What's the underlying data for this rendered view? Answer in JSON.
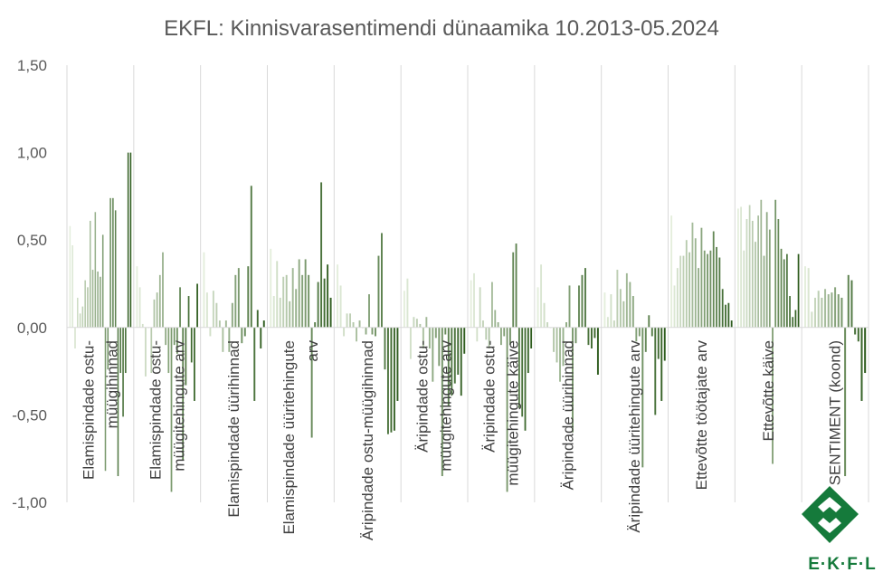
{
  "chart_data": {
    "type": "bar",
    "title": "EKFL: Kinnisvarasentimendi dünaamika 10.2013-05.2024",
    "ylim": [
      -1.0,
      1.5
    ],
    "yticks": [
      -1.0,
      -0.5,
      0.0,
      0.5,
      1.0,
      1.5
    ],
    "ytick_labels": [
      "-1,00",
      "-0,50",
      "0,00",
      "0,50",
      "1,00",
      "1,50"
    ],
    "grid": "vertical category separators",
    "legend": "none",
    "categories": [
      "Elamispindade ostu-müügihinnad",
      "Elamispindade ostu-müügitehingute arv",
      "Elamispindade üürihinnad",
      "Elamispindade üüritehingute arv",
      "Äripindade ostu-müügihinnad",
      "Äripindade ostu-müügitehingute arv",
      "Äripindade ostu-müügitehingute käive",
      "Äripindade üürihinnad",
      "Äripindade üüritehingute arv",
      "Ettevõtte töötajate arv",
      "Ettevõtte käive",
      "SENTIMENT (koond)"
    ],
    "category_label_lines": [
      [
        "Elamispindade ostu-",
        "müügihinnad"
      ],
      [
        "Elamispindade ostu-",
        "müügitehingute arv"
      ],
      [
        "Elamispindade üürihinnad"
      ],
      [
        "Elamispindade üüritehingute",
        "arv"
      ],
      [
        "Äripindade ostu-müügihinnad"
      ],
      [
        "Äripindade ostu-",
        "müügitehingute arv"
      ],
      [
        "Äripindade ostu-",
        "müügitehingute käive"
      ],
      [
        "Äripindade üürihinnad"
      ],
      [
        "Äripindade üüritehingute arv"
      ],
      [
        "Ettevõtte töötajate arv"
      ],
      [
        "Ettevõtte käive"
      ],
      [
        "SENTIMENT (koond)"
      ]
    ],
    "series_values": [
      [
        0.58,
        0.47,
        -0.12,
        0.17,
        0.08,
        0.12,
        0.27,
        0.23,
        0.61,
        0.33,
        0.66,
        0.32,
        0.29,
        0.53,
        -0.82,
        -0.24,
        0.74,
        0.74,
        0.67,
        -0.85,
        -0.26,
        -0.51,
        -0.26,
        1.0,
        1.0
      ],
      [
        0.35,
        0.23,
        0.02,
        -0.28,
        0.0,
        -0.26,
        0.16,
        0.2,
        0.3,
        0.43,
        -0.1,
        -0.26,
        -0.94,
        -0.1,
        -0.15,
        0.23,
        -0.76,
        -0.33,
        0.18,
        -0.2,
        -0.42,
        0.25
      ],
      [
        0.43,
        0.2,
        -0.05,
        0.21,
        0.14,
        0.04,
        -0.14,
        0.04,
        -0.14,
        0.14,
        0.3,
        0.34,
        -0.09,
        -0.05,
        0.35,
        0.81,
        -0.42,
        0.1,
        -0.12,
        0.04
      ],
      [
        0.45,
        0.18,
        0.38,
        0.17,
        0.29,
        0.3,
        0.15,
        0.34,
        0.22,
        0.39,
        0.3,
        0.39,
        0.3,
        -0.63,
        0.03,
        0.26,
        0.83,
        0.28,
        0.36,
        0.17
      ],
      [
        0.36,
        0.24,
        -0.05,
        0.08,
        0.08,
        0.03,
        -0.08,
        0.04,
        0.0,
        -0.04,
        0.19,
        -0.04,
        -0.05,
        0.41,
        0.54,
        -0.24,
        -0.61,
        -0.6,
        -0.59,
        -0.42
      ],
      [
        0.21,
        0.28,
        -0.18,
        0.06,
        0.05,
        0.02,
        -0.12,
        0.06,
        -0.12,
        -0.31,
        -0.06,
        -0.22,
        -0.85,
        -0.04,
        -0.45,
        -0.39,
        -0.32,
        -0.27,
        -0.39,
        -0.15
      ],
      [
        0.27,
        0.31,
        -0.08,
        0.23,
        0.04,
        -0.07,
        -0.12,
        0.26,
        0.1,
        0.03,
        -0.1,
        -0.05,
        -0.94,
        -0.1,
        0.43,
        0.48,
        -0.46,
        -0.51,
        -0.59,
        -0.26,
        -0.12
      ],
      [
        0.23,
        0.36,
        0.14,
        0.03,
        0.0,
        -0.14,
        -0.2,
        -0.31,
        -0.22,
        0.03,
        0.24,
        -0.6,
        -0.09,
        0.24,
        0.3,
        0.34,
        -0.1,
        -0.12,
        -0.06,
        -0.27
      ],
      [
        0.2,
        0.06,
        0.19,
        0.04,
        0.33,
        0.22,
        0.15,
        0.31,
        0.26,
        0.18,
        -0.08,
        -0.05,
        -0.8,
        -0.14,
        0.07,
        -0.05,
        -0.5,
        -0.18,
        -0.42,
        -0.19
      ],
      [
        0.64,
        0.24,
        0.34,
        0.41,
        0.41,
        0.5,
        0.43,
        0.6,
        0.51,
        0.34,
        0.57,
        0.44,
        0.42,
        0.44,
        0.55,
        0.46,
        0.4,
        0.22,
        0.13,
        0.14,
        0.04
      ],
      [
        0.68,
        0.69,
        0.44,
        0.62,
        0.7,
        0.61,
        0.49,
        0.64,
        0.73,
        0.41,
        0.66,
        0.56,
        -0.78,
        0.73,
        0.62,
        0.45,
        0.39,
        0.42,
        0.18,
        0.06,
        0.1,
        0.42
      ],
      [
        0.35,
        0.34,
        0.09,
        0.17,
        0.21,
        0.17,
        0.22,
        0.19,
        0.2,
        0.23,
        0.19,
        0.17,
        -0.85,
        0.3,
        0.27,
        -0.04,
        -0.08,
        -0.42,
        -0.26
      ]
    ]
  },
  "logo": {
    "text": "E·K·F·L",
    "color": "#157a3b"
  },
  "colors": {
    "title": "#595959",
    "axis_text": "#595959",
    "grid": "#d9d9d9",
    "bar_light": "#e4eedc",
    "bar_dark": "#2e5c1e"
  }
}
